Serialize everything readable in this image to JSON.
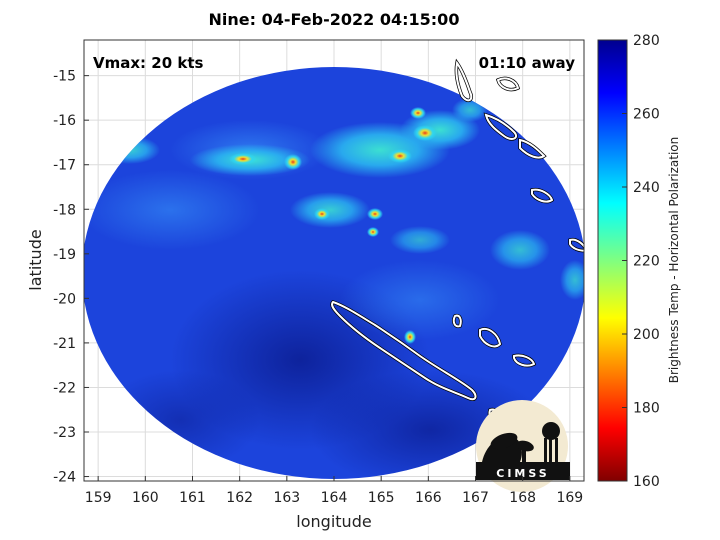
{
  "title": "Nine: 04-Feb-2022 04:15:00",
  "vmax_label": "Vmax: 20 kts",
  "away_label": "01:10 away",
  "axes": {
    "xlabel": "longitude",
    "ylabel": "latitude",
    "x_ticks": [
      "159",
      "160",
      "161",
      "162",
      "163",
      "164",
      "165",
      "166",
      "167",
      "168",
      "169"
    ],
    "y_ticks": [
      "-15",
      "-16",
      "-17",
      "-18",
      "-19",
      "-20",
      "-21",
      "-22",
      "-23",
      "-24"
    ],
    "xlim": [
      158.7,
      169.3
    ],
    "ylim": [
      -24.1,
      -14.2
    ]
  },
  "colorbar": {
    "label": "Brightness Temp - Horizontal Polarization",
    "ticks": [
      "280",
      "260",
      "240",
      "220",
      "200",
      "180",
      "160"
    ],
    "range": [
      160,
      280
    ],
    "colormap": "jet"
  },
  "logo_text": "CIMSS",
  "colors": {
    "background_blue": "#1a3fd8",
    "deep_blue": "#0b1f9a",
    "convection_cyan": "#2fd6f0",
    "convection_yellow": "#f0e030",
    "convection_red": "#e03020",
    "coastline": "#ffffff"
  }
}
